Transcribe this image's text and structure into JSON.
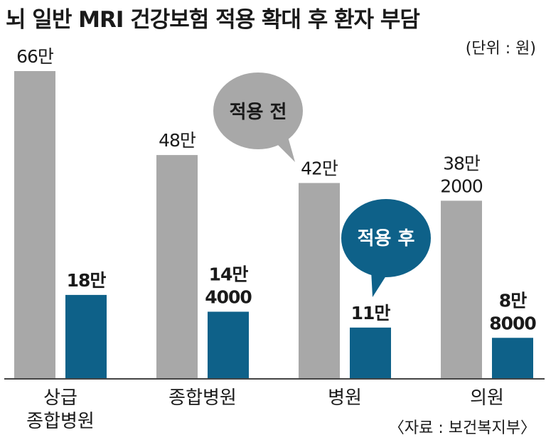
{
  "title": "뇌 일반 MRI 건강보험 적용 확대 후 환자 부담",
  "unit": "(단위 : 원)",
  "source": "〈자료 : 보건복지부〉",
  "colors": {
    "before": "#a8a8a8",
    "after": "#0e6189",
    "axis": "#444444"
  },
  "chart_data": {
    "type": "bar",
    "title": "뇌 일반 MRI 건강보험 적용 확대 후 환자 부담",
    "categories": [
      [
        "상급",
        "종합병원"
      ],
      [
        "종합병원"
      ],
      [
        "병원"
      ],
      [
        "의원"
      ]
    ],
    "series": [
      {
        "name": "적용 전",
        "values": [
          660000,
          480000,
          420000,
          382000
        ],
        "labels": [
          [
            "66만"
          ],
          [
            "48만"
          ],
          [
            "42만"
          ],
          [
            "38만",
            "2000"
          ]
        ]
      },
      {
        "name": "적용 후",
        "values": [
          180000,
          144000,
          110000,
          88000
        ],
        "labels": [
          [
            "18만"
          ],
          [
            "14만",
            "4000"
          ],
          [
            "11만"
          ],
          [
            "8만",
            "8000"
          ]
        ]
      }
    ],
    "ylim": [
      0,
      660000
    ],
    "grid": false,
    "legend": "speech bubbles"
  }
}
